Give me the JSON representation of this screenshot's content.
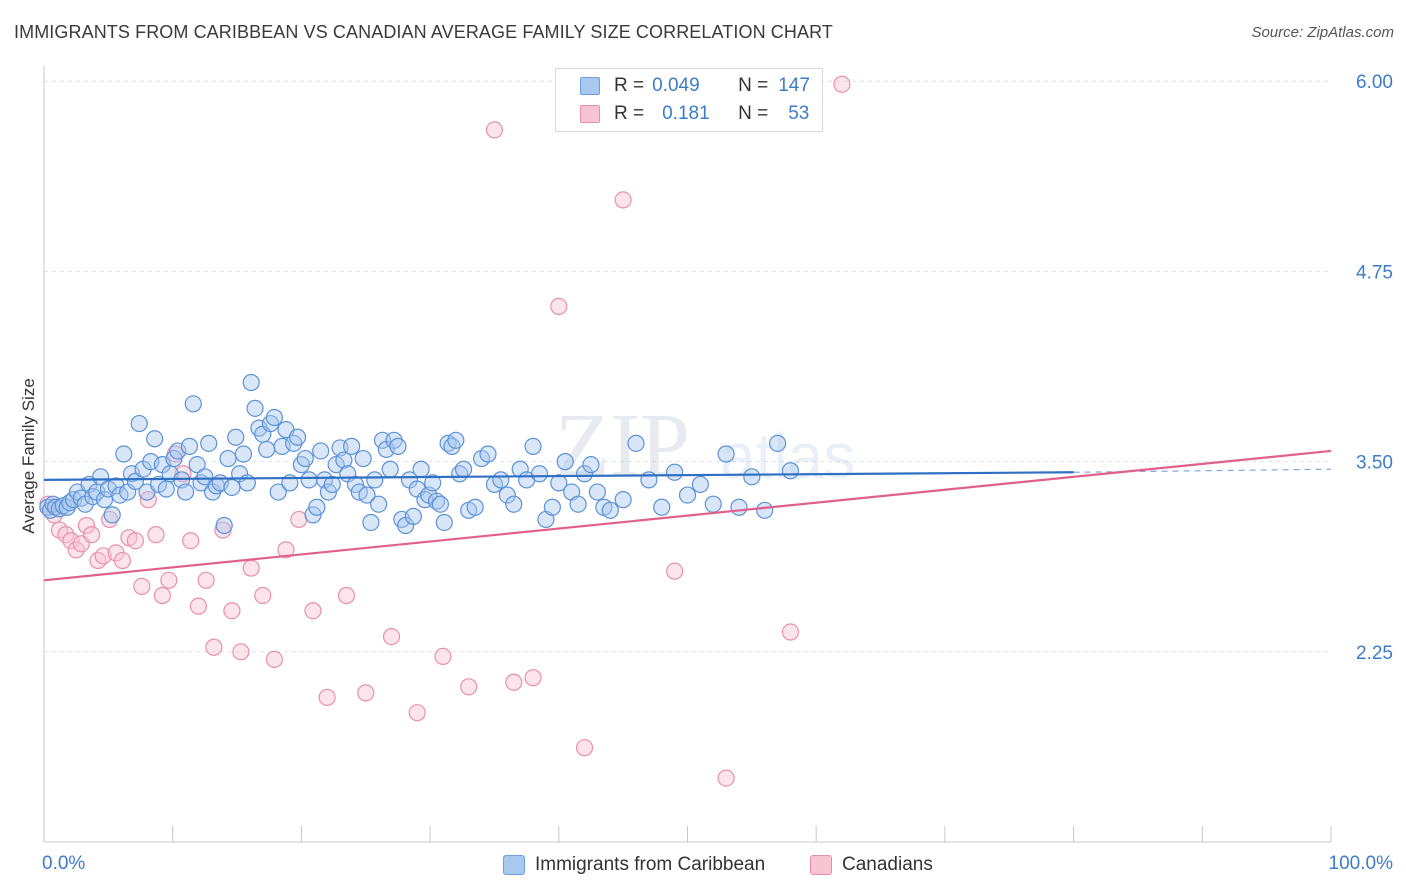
{
  "title": "IMMIGRANTS FROM CARIBBEAN VS CANADIAN AVERAGE FAMILY SIZE CORRELATION CHART",
  "source": "Source: ZipAtlas.com",
  "watermark": {
    "zip": "ZIP",
    "atlas": "atlas"
  },
  "legend": {
    "r_label": "R =",
    "n_label": "N =",
    "rows": [
      {
        "r": "0.049",
        "n": "147",
        "color": "#a9c8f0",
        "stroke": "#6b9fde"
      },
      {
        "r": "0.181",
        "n": "53",
        "color": "#f8c3d2",
        "stroke": "#e98fae"
      }
    ]
  },
  "x_labels": {
    "left": "0.0%",
    "right": "100.0%"
  },
  "series_labels": [
    "Immigrants from Caribbean",
    "Canadians"
  ],
  "colors": {
    "blue": "#3d7cc9",
    "blue_line": "#2f6fc4",
    "pink_line": "#e0608c",
    "grid": "#dde3ea",
    "axis": "#c8c8c8"
  },
  "chart_data": {
    "type": "scatter",
    "title": "IMMIGRANTS FROM CARIBBEAN VS CANADIAN AVERAGE FAMILY SIZE CORRELATION CHART",
    "xlabel": "",
    "ylabel": "Average Family Size",
    "xlim": [
      0,
      100
    ],
    "ylim": [
      1.0,
      6.1
    ],
    "yticks": [
      2.25,
      3.5,
      4.75,
      6.0
    ],
    "ytick_labels": [
      "2.25",
      "3.50",
      "4.75",
      "6.00"
    ],
    "xtick_labels": [
      "0.0%",
      "100.0%"
    ],
    "grid": true,
    "legend_position": "top-center",
    "series": [
      {
        "name": "Immigrants from Caribbean",
        "R": 0.049,
        "N": 147,
        "trend": {
          "x": [
            0,
            80
          ],
          "y": [
            3.38,
            3.43
          ],
          "dashed_to": [
            100,
            3.45
          ]
        },
        "x": [
          0.3,
          0.5,
          0.7,
          0.9,
          1.2,
          1.5,
          1.8,
          2.0,
          2.3,
          2.6,
          2.9,
          3.2,
          3.5,
          3.8,
          4.1,
          4.4,
          4.7,
          5.0,
          5.3,
          5.6,
          5.9,
          6.2,
          6.5,
          6.8,
          7.1,
          7.4,
          7.7,
          8.0,
          8.3,
          8.6,
          8.9,
          9.2,
          9.5,
          9.8,
          10.1,
          10.4,
          10.7,
          11.0,
          11.3,
          11.6,
          11.9,
          12.2,
          12.5,
          12.8,
          13.1,
          13.4,
          13.7,
          14.0,
          14.3,
          14.6,
          14.9,
          15.2,
          15.5,
          15.8,
          16.1,
          16.4,
          16.7,
          17.0,
          17.3,
          17.6,
          17.9,
          18.2,
          18.5,
          18.8,
          19.1,
          19.4,
          19.7,
          20.0,
          20.3,
          20.6,
          20.9,
          21.2,
          21.5,
          21.8,
          22.1,
          22.4,
          22.7,
          23.0,
          23.3,
          23.6,
          23.9,
          24.2,
          24.5,
          24.8,
          25.1,
          25.4,
          25.7,
          26.0,
          26.3,
          26.6,
          26.9,
          27.2,
          27.5,
          27.8,
          28.1,
          28.4,
          28.7,
          29.0,
          29.3,
          29.6,
          29.9,
          30.2,
          30.5,
          30.8,
          31.1,
          31.4,
          31.7,
          32.0,
          32.3,
          32.6,
          33.0,
          33.5,
          34.0,
          34.5,
          35.0,
          35.5,
          36.0,
          36.5,
          37.0,
          37.5,
          38.0,
          38.5,
          39.0,
          39.5,
          40.0,
          40.5,
          41.0,
          41.5,
          42.0,
          42.5,
          43.0,
          43.5,
          44.0,
          45.0,
          46.0,
          47.0,
          48.0,
          49.0,
          50.0,
          51.0,
          52.0,
          53.0,
          54.0,
          55.0,
          56.0,
          57.0,
          58.0
        ],
        "y": [
          3.2,
          3.18,
          3.22,
          3.2,
          3.19,
          3.21,
          3.2,
          3.23,
          3.25,
          3.3,
          3.26,
          3.22,
          3.35,
          3.27,
          3.3,
          3.4,
          3.25,
          3.32,
          3.15,
          3.34,
          3.28,
          3.55,
          3.3,
          3.42,
          3.37,
          3.75,
          3.45,
          3.3,
          3.5,
          3.65,
          3.35,
          3.48,
          3.32,
          3.42,
          3.52,
          3.57,
          3.38,
          3.3,
          3.6,
          3.88,
          3.48,
          3.36,
          3.4,
          3.62,
          3.3,
          3.34,
          3.36,
          3.08,
          3.52,
          3.33,
          3.66,
          3.42,
          3.55,
          3.36,
          4.02,
          3.85,
          3.72,
          3.68,
          3.58,
          3.75,
          3.79,
          3.3,
          3.6,
          3.71,
          3.36,
          3.62,
          3.66,
          3.48,
          3.52,
          3.38,
          3.15,
          3.2,
          3.57,
          3.38,
          3.3,
          3.35,
          3.48,
          3.59,
          3.51,
          3.42,
          3.6,
          3.35,
          3.3,
          3.52,
          3.28,
          3.1,
          3.38,
          3.22,
          3.64,
          3.58,
          3.45,
          3.64,
          3.6,
          3.12,
          3.08,
          3.38,
          3.14,
          3.32,
          3.45,
          3.25,
          3.28,
          3.36,
          3.24,
          3.22,
          3.1,
          3.62,
          3.6,
          3.64,
          3.42,
          3.45,
          3.18,
          3.2,
          3.52,
          3.55,
          3.35,
          3.38,
          3.28,
          3.22,
          3.45,
          3.38,
          3.6,
          3.42,
          3.12,
          3.2,
          3.36,
          3.5,
          3.3,
          3.22,
          3.42,
          3.48,
          3.3,
          3.2,
          3.18,
          3.25,
          3.62,
          3.38,
          3.2,
          3.43,
          3.28,
          3.35,
          3.22,
          3.55,
          3.2,
          3.4,
          3.18,
          3.62,
          3.44
        ]
      },
      {
        "name": "Canadians",
        "R": 0.181,
        "N": 53,
        "trend": {
          "x": [
            0,
            100
          ],
          "y": [
            2.72,
            3.57
          ]
        },
        "x": [
          0.3,
          0.8,
          1.2,
          1.7,
          2.1,
          2.5,
          2.9,
          3.3,
          3.7,
          4.2,
          4.6,
          5.1,
          5.6,
          6.1,
          6.6,
          7.1,
          7.6,
          8.1,
          8.7,
          9.2,
          9.7,
          10.2,
          10.8,
          11.4,
          12.0,
          12.6,
          13.2,
          13.9,
          14.6,
          15.3,
          16.1,
          17.0,
          17.9,
          18.8,
          19.8,
          20.9,
          22.0,
          23.5,
          25.0,
          27.0,
          29.0,
          31.0,
          33.0,
          35.0,
          36.5,
          38.0,
          40.0,
          42.0,
          45.0,
          49.0,
          53.0,
          58.0,
          62.0
        ],
        "y": [
          3.22,
          3.15,
          3.05,
          3.02,
          2.98,
          2.92,
          2.96,
          3.08,
          3.02,
          2.85,
          2.88,
          3.12,
          2.9,
          2.85,
          3.0,
          2.98,
          2.68,
          3.25,
          3.02,
          2.62,
          2.72,
          3.55,
          3.42,
          2.98,
          2.55,
          2.72,
          2.28,
          3.05,
          2.52,
          2.25,
          2.8,
          2.62,
          2.2,
          2.92,
          3.12,
          2.52,
          1.95,
          2.62,
          1.98,
          2.35,
          1.85,
          2.22,
          2.02,
          5.68,
          2.05,
          2.08,
          4.52,
          1.62,
          5.22,
          2.78,
          1.42,
          2.38,
          5.98
        ]
      }
    ]
  }
}
